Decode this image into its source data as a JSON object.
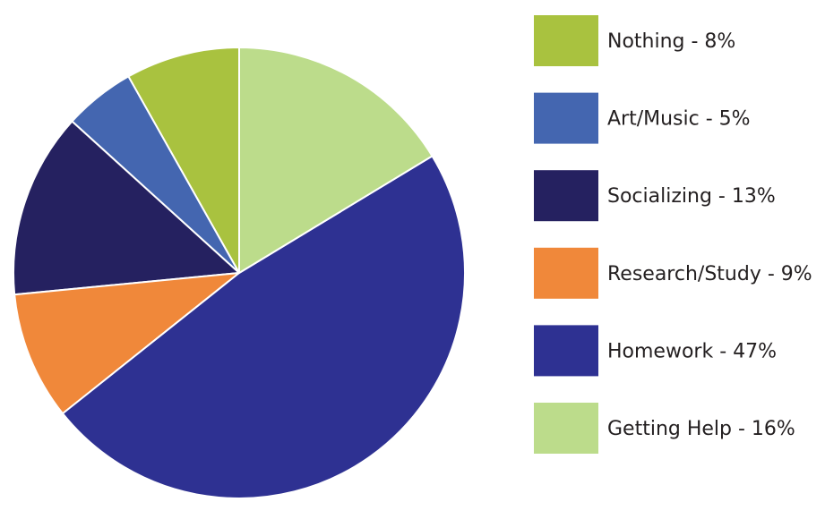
{
  "chart_data": {
    "type": "pie",
    "categories": [
      "Nothing - 8%",
      "Art/Music - 5%",
      "Socializing - 13%",
      "Research/Study - 9%",
      "Homework - 47%",
      "Getting Help - 16%"
    ],
    "values": [
      8,
      5,
      13,
      9,
      47,
      16
    ],
    "colors": [
      "#a9c23f",
      "#4466b0",
      "#252160",
      "#f0883a",
      "#2e3192",
      "#bcdc8b"
    ],
    "legend": "right"
  }
}
